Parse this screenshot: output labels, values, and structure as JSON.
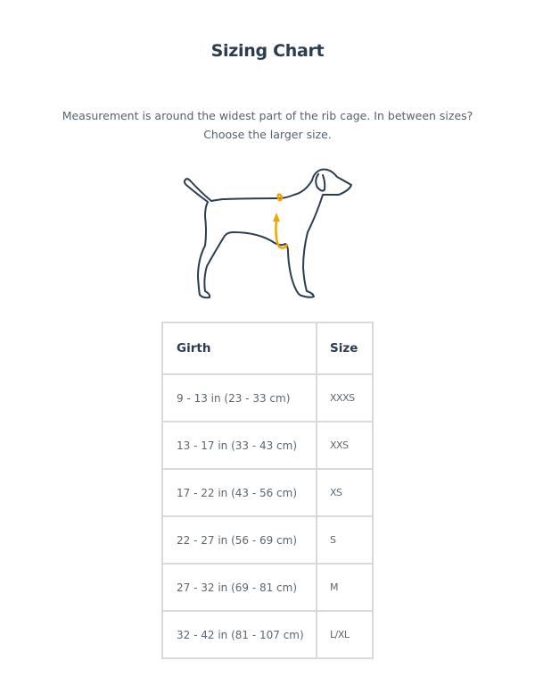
{
  "title": "Sizing Chart",
  "description_line1": "Measurement is around the widest part of the rib cage. In between sizes?",
  "description_line2": "Choose the larger size.",
  "illustration": {
    "icon": "dog-girth-measurement-icon",
    "outline_color": "#2b3d4f",
    "arrow_color": "#f0a500"
  },
  "table": {
    "headers": {
      "girth": "Girth",
      "size": "Size"
    },
    "rows": [
      {
        "girth": "9 - 13 in (23 - 33 cm)",
        "size": "XXXS"
      },
      {
        "girth": "13 - 17 in (33 - 43 cm)",
        "size": "XXS"
      },
      {
        "girth": "17 - 22 in (43 - 56 cm)",
        "size": "XS"
      },
      {
        "girth": "22 - 27 in (56 - 69 cm)",
        "size": "S"
      },
      {
        "girth": "27 - 32 in (69 - 81 cm)",
        "size": "M"
      },
      {
        "girth": "32 - 42 in (81 - 107 cm)",
        "size": "L/XL"
      }
    ]
  }
}
